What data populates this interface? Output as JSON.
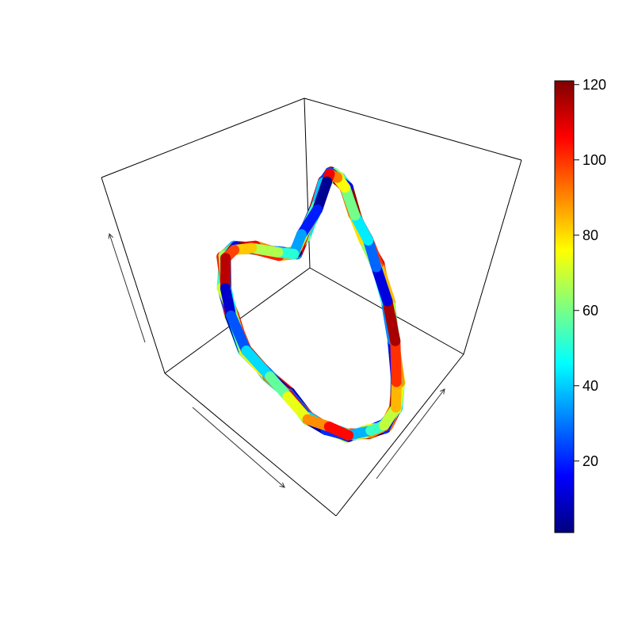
{
  "chart_data": {
    "type": "line",
    "title": "",
    "xlabel": "",
    "ylabel": "",
    "zlabel": "",
    "grid": false,
    "colorscale": "jet",
    "colorbar": {
      "min": 1,
      "max": 121,
      "ticks": [
        {
          "value": 20,
          "label": "20"
        },
        {
          "value": 40,
          "label": "40"
        },
        {
          "value": 60,
          "label": "60"
        },
        {
          "value": 80,
          "label": "80"
        },
        {
          "value": 100,
          "label": "100"
        },
        {
          "value": 120,
          "label": "120"
        }
      ],
      "placement": "right"
    },
    "path_points": [
      [
        440,
        550
      ],
      [
        465,
        545
      ],
      [
        487,
        538
      ],
      [
        500,
        515
      ],
      [
        502,
        480
      ],
      [
        498,
        430
      ],
      [
        490,
        380
      ],
      [
        476,
        335
      ],
      [
        462,
        305
      ],
      [
        447,
        270
      ],
      [
        437,
        238
      ],
      [
        427,
        226
      ],
      [
        419,
        218
      ],
      [
        410,
        228
      ],
      [
        399,
        262
      ],
      [
        383,
        296
      ],
      [
        372,
        318
      ],
      [
        350,
        320
      ],
      [
        320,
        313
      ],
      [
        297,
        313
      ],
      [
        282,
        325
      ],
      [
        283,
        365
      ],
      [
        292,
        398
      ],
      [
        309,
        440
      ],
      [
        338,
        475
      ],
      [
        365,
        498
      ],
      [
        390,
        527
      ],
      [
        413,
        540
      ]
    ],
    "loops": 10
  }
}
